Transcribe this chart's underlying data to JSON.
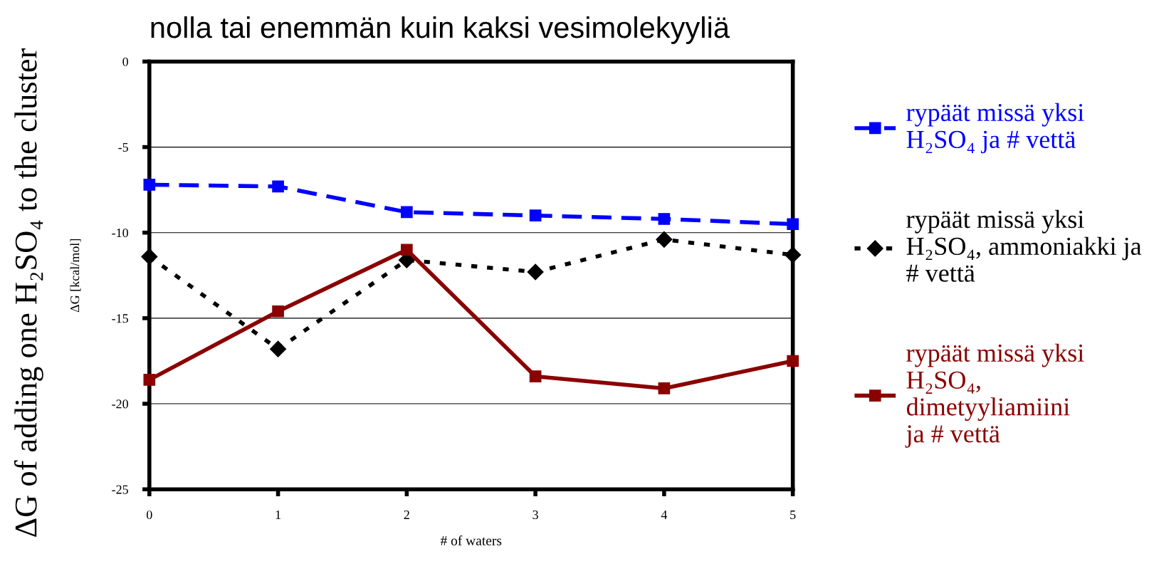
{
  "chart_data": {
    "type": "line",
    "title": "nolla tai enemmän kuin kaksi vesimolekyyliä",
    "xlabel": "# of waters",
    "ylabel": "ΔG [kcal/mol]",
    "annotations": [
      "ΔG of adding one H₂SO₄ to the cluster"
    ],
    "x": [
      0,
      1,
      2,
      3,
      4,
      5
    ],
    "series": [
      {
        "name": "rypäät missä yksi\nH₂SO₄ ja # vettä",
        "color": "#0000ff",
        "values": [
          -7.2,
          -7.3,
          -8.8,
          -9.0,
          -9.2,
          -9.5
        ],
        "marker": "square",
        "line_style": "dashed"
      },
      {
        "name": "rypäät missä yksi\nH₂SO₄, ammoniakki ja\n# vettä",
        "color": "#000000",
        "values": [
          -11.4,
          -16.8,
          -11.6,
          -12.3,
          -10.4,
          -11.3
        ],
        "marker": "diamond",
        "line_style": "dotted"
      },
      {
        "name": "rypäät missä yksi\nH₂SO₄,\ndimetyyliamiini\nja # vettä",
        "color": "#8b0000",
        "values": [
          -18.6,
          -14.6,
          -11.0,
          -18.4,
          -19.1,
          -17.5
        ],
        "marker": "square",
        "line_style": "solid"
      }
    ],
    "xlim": [
      0,
      5
    ],
    "xticks": [
      0,
      1,
      2,
      3,
      4,
      5
    ],
    "ylim": [
      -25,
      0
    ],
    "yticks": [
      -25,
      -20,
      -15,
      -10,
      -5,
      0
    ],
    "grid": "y",
    "legend": "right"
  }
}
